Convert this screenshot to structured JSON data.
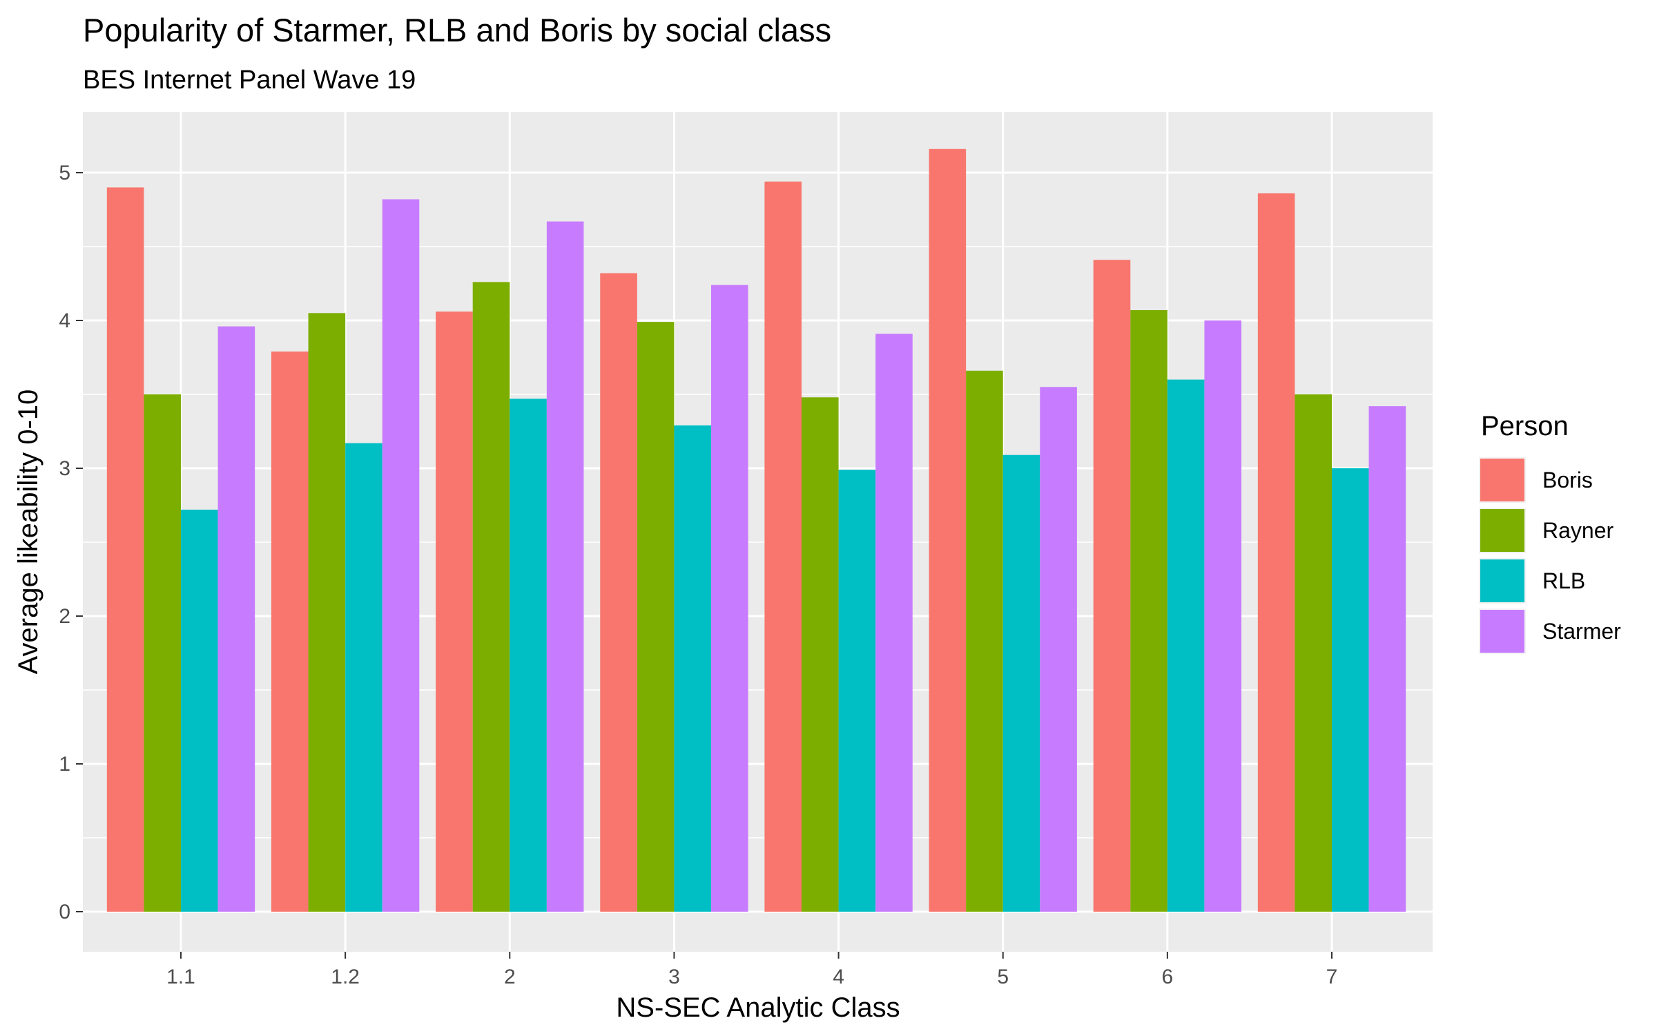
{
  "chart_data": {
    "type": "bar",
    "title": "Popularity of Starmer, RLB and Boris by social class",
    "subtitle": "BES Internet Panel Wave 19",
    "xlabel": "NS-SEC Analytic Class",
    "ylabel": "Average likeability 0-10",
    "ylim": [
      0,
      5.35
    ],
    "yticks": [
      "0",
      "1",
      "2",
      "3",
      "4",
      "5"
    ],
    "grid": true,
    "legend_position": "right",
    "legend_title": "Person",
    "categories": [
      "1.1",
      "1.2",
      "2",
      "3",
      "4",
      "5",
      "6",
      "7"
    ],
    "series": [
      {
        "name": "Boris",
        "color": "#F8766D",
        "values": [
          4.9,
          3.79,
          4.06,
          4.32,
          4.94,
          5.16,
          4.41,
          4.86
        ]
      },
      {
        "name": "Rayner",
        "color": "#7CAE00",
        "values": [
          3.5,
          4.05,
          4.26,
          3.99,
          3.48,
          3.66,
          4.07,
          3.5
        ]
      },
      {
        "name": "RLB",
        "color": "#00BFC4",
        "values": [
          2.72,
          3.17,
          3.47,
          3.29,
          2.99,
          3.09,
          3.6,
          3.0
        ]
      },
      {
        "name": "Starmer",
        "color": "#C77CFF",
        "values": [
          3.96,
          4.82,
          4.67,
          4.24,
          3.91,
          3.55,
          4.0,
          3.42
        ]
      }
    ]
  }
}
